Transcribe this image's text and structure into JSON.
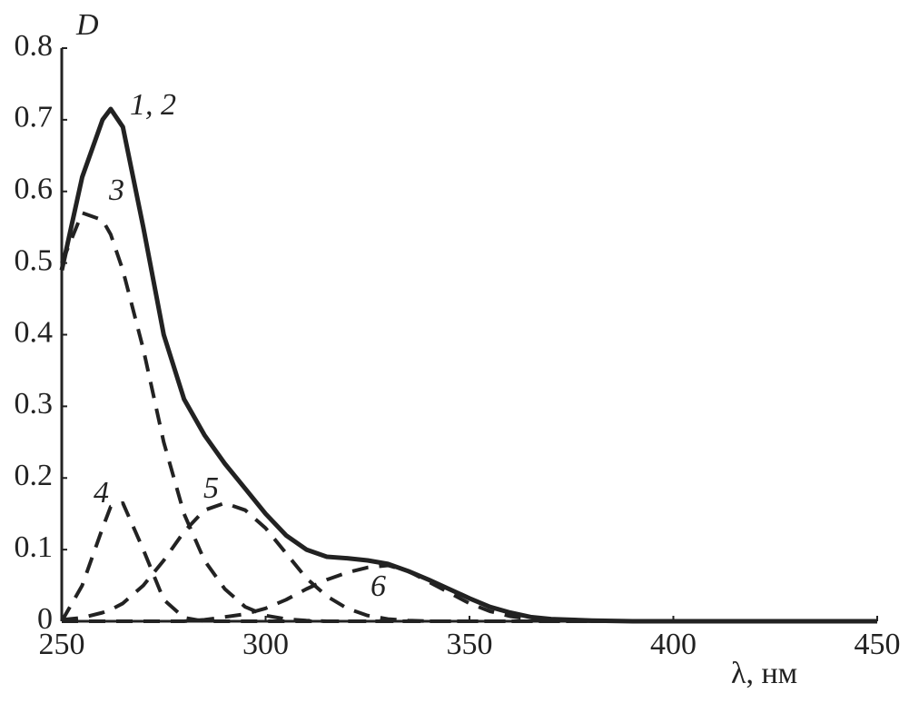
{
  "chart_data": {
    "type": "line",
    "y_label": "D",
    "x_label": "λ, нм",
    "x": [
      250,
      255,
      260,
      262,
      265,
      270,
      275,
      280,
      285,
      290,
      295,
      300,
      305,
      310,
      315,
      320,
      325,
      330,
      335,
      340,
      345,
      350,
      355,
      360,
      365,
      370,
      380,
      390,
      400,
      450
    ],
    "xlim": [
      250,
      450
    ],
    "xticks": [
      250,
      300,
      350,
      400,
      450
    ],
    "ylim": [
      0,
      0.8
    ],
    "yticks": [
      0,
      0.1,
      0.2,
      0.3,
      0.4,
      0.5,
      0.6,
      0.7,
      0.8
    ],
    "series": [
      {
        "name": "1, 2",
        "color": "#222222",
        "dashed": false,
        "values": [
          0.49,
          0.62,
          0.7,
          0.715,
          0.69,
          0.55,
          0.4,
          0.31,
          0.26,
          0.22,
          0.185,
          0.15,
          0.12,
          0.1,
          0.09,
          0.088,
          0.085,
          0.08,
          0.07,
          0.058,
          0.045,
          0.032,
          0.02,
          0.012,
          0.006,
          0.003,
          0.001,
          0,
          0,
          0
        ]
      },
      {
        "name": "3",
        "color": "#222222",
        "dashed": true,
        "values": [
          0.5,
          0.57,
          0.56,
          0.54,
          0.49,
          0.38,
          0.25,
          0.15,
          0.085,
          0.045,
          0.02,
          0.008,
          0.003,
          0.001,
          0,
          0,
          0,
          0,
          0,
          0,
          0,
          0,
          0,
          0,
          0,
          0,
          0,
          0,
          0,
          0
        ]
      },
      {
        "name": "4",
        "color": "#222222",
        "dashed": true,
        "values": [
          0,
          0.05,
          0.13,
          0.16,
          0.165,
          0.1,
          0.03,
          0.005,
          0,
          0,
          0,
          0,
          0,
          0,
          0,
          0,
          0,
          0,
          0,
          0,
          0,
          0,
          0,
          0,
          0,
          0,
          0,
          0,
          0,
          0
        ]
      },
      {
        "name": "5",
        "color": "#222222",
        "dashed": true,
        "values": [
          0.002,
          0.005,
          0.012,
          0.016,
          0.025,
          0.05,
          0.085,
          0.125,
          0.155,
          0.165,
          0.155,
          0.13,
          0.095,
          0.06,
          0.035,
          0.018,
          0.008,
          0.003,
          0.001,
          0,
          0,
          0,
          0,
          0,
          0,
          0,
          0,
          0,
          0,
          0
        ]
      },
      {
        "name": "6",
        "color": "#222222",
        "dashed": true,
        "values": [
          0,
          0,
          0,
          0,
          0,
          0,
          0,
          0,
          0.002,
          0.006,
          0.01,
          0.018,
          0.03,
          0.045,
          0.058,
          0.068,
          0.075,
          0.078,
          0.07,
          0.055,
          0.04,
          0.025,
          0.014,
          0.007,
          0.003,
          0.001,
          0,
          0,
          0,
          0
        ]
      }
    ]
  }
}
